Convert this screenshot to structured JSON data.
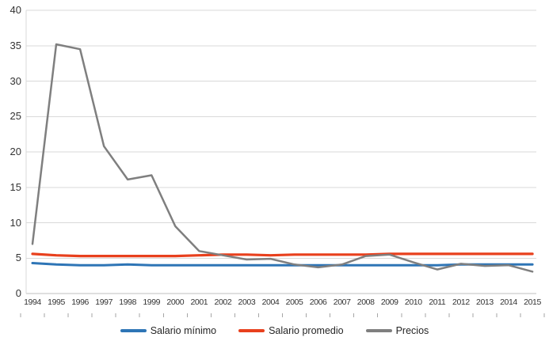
{
  "chart_data": {
    "type": "line",
    "title": "",
    "xlabel": "",
    "ylabel": "",
    "x": [
      1994,
      1995,
      1996,
      1997,
      1998,
      1999,
      2000,
      2001,
      2002,
      2003,
      2004,
      2005,
      2006,
      2007,
      2008,
      2009,
      2010,
      2011,
      2012,
      2013,
      2014,
      2015
    ],
    "series": [
      {
        "name": "Salario mínimo",
        "color": "#2E75B6",
        "stroke_width": 3,
        "values": [
          4.3,
          4.1,
          4.0,
          4.0,
          4.1,
          4.0,
          4.0,
          4.0,
          4.0,
          4.0,
          4.0,
          4.0,
          4.0,
          4.0,
          4.0,
          4.0,
          4.0,
          4.0,
          4.1,
          4.1,
          4.1,
          4.1
        ]
      },
      {
        "name": "Salario promedio",
        "color": "#E8401D",
        "stroke_width": 3.2,
        "values": [
          5.6,
          5.4,
          5.3,
          5.3,
          5.3,
          5.3,
          5.3,
          5.4,
          5.5,
          5.5,
          5.4,
          5.5,
          5.5,
          5.5,
          5.5,
          5.6,
          5.6,
          5.6,
          5.6,
          5.6,
          5.6,
          5.6
        ]
      },
      {
        "name": "Precios",
        "color": "#7F7F7F",
        "stroke_width": 2.5,
        "values": [
          7.0,
          35.2,
          34.5,
          20.8,
          16.1,
          16.7,
          9.5,
          6.0,
          5.4,
          4.8,
          4.9,
          4.1,
          3.7,
          4.1,
          5.3,
          5.5,
          4.4,
          3.4,
          4.2,
          3.9,
          4.0,
          3.1
        ]
      }
    ],
    "ylim": [
      0,
      40
    ],
    "yticks": [
      0,
      5,
      10,
      15,
      20,
      25,
      30,
      35,
      40
    ],
    "grid": "horizontal",
    "legend_position": "bottom-center",
    "colors": {
      "gridline": "#D9D9D9",
      "axis_line": "#BFBFBF",
      "tick_mark": "#A6A6A6",
      "label_text": "#333333",
      "background": "#FFFFFF"
    }
  }
}
